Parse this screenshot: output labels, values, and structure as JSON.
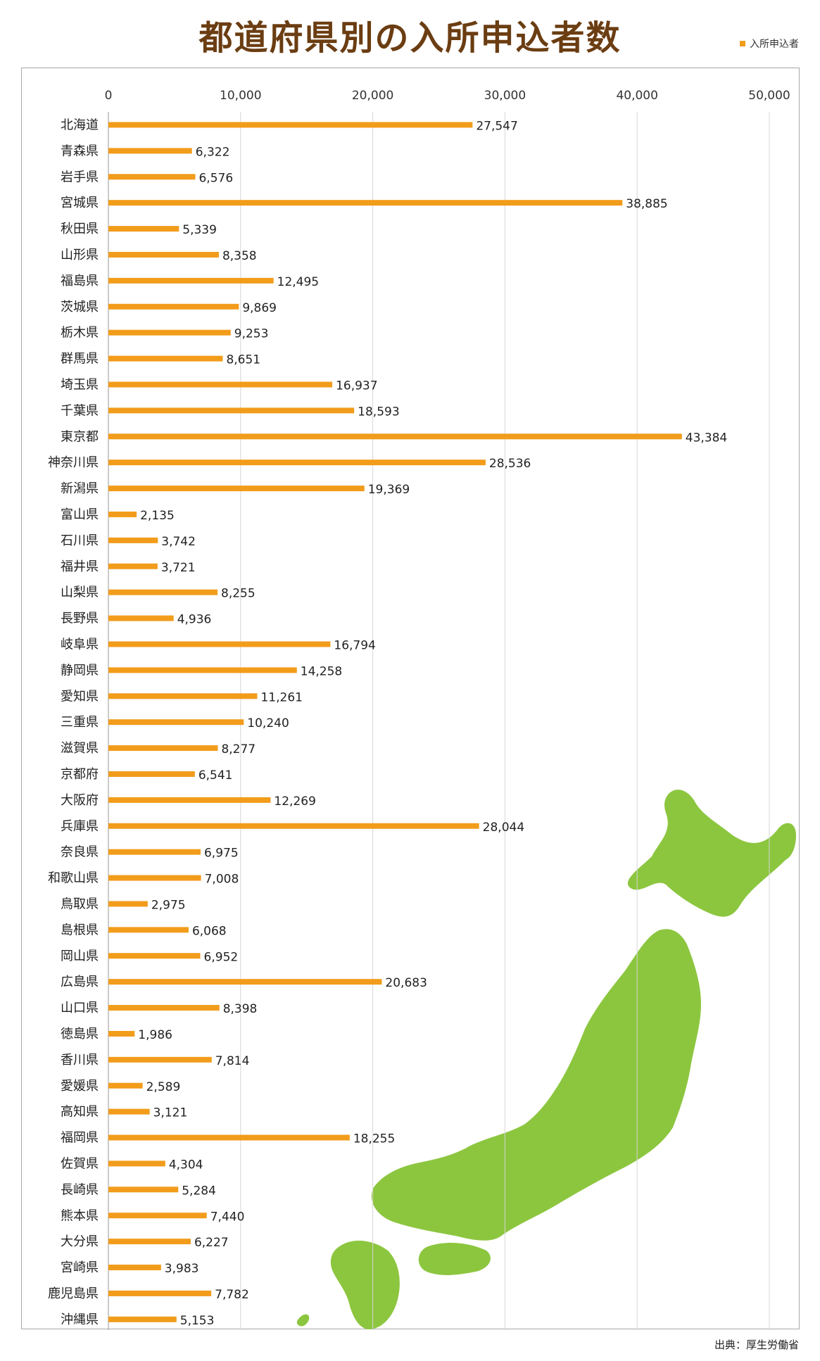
{
  "title": "都道府県別の入所申込者数",
  "legend_label": "入所申込者",
  "source": "出典：厚生労働省",
  "colors": {
    "bar": "#f29c1b",
    "title": "#6b3d12",
    "map": "#8cc63f",
    "grid": "#d6d6d6"
  },
  "chart_data": {
    "type": "bar",
    "orientation": "horizontal",
    "title": "都道府県別の入所申込者数",
    "xlim": [
      0,
      50000
    ],
    "xticks": [
      "0",
      "10,000",
      "20,000",
      "30,000",
      "40,000",
      "50,000"
    ],
    "legend": "top-right",
    "grid": true,
    "categories": [
      "北海道",
      "青森県",
      "岩手県",
      "宮城県",
      "秋田県",
      "山形県",
      "福島県",
      "茨城県",
      "栃木県",
      "群馬県",
      "埼玉県",
      "千葉県",
      "東京都",
      "神奈川県",
      "新潟県",
      "富山県",
      "石川県",
      "福井県",
      "山梨県",
      "長野県",
      "岐阜県",
      "静岡県",
      "愛知県",
      "三重県",
      "滋賀県",
      "京都府",
      "大阪府",
      "兵庫県",
      "奈良県",
      "和歌山県",
      "鳥取県",
      "島根県",
      "岡山県",
      "広島県",
      "山口県",
      "徳島県",
      "香川県",
      "愛媛県",
      "高知県",
      "福岡県",
      "佐賀県",
      "長崎県",
      "熊本県",
      "大分県",
      "宮崎県",
      "鹿児島県",
      "沖縄県"
    ],
    "series": [
      {
        "name": "入所申込者",
        "values": [
          27547,
          6322,
          6576,
          38885,
          5339,
          8358,
          12495,
          9869,
          9253,
          8651,
          16937,
          18593,
          43384,
          28536,
          19369,
          2135,
          3742,
          3721,
          8255,
          4936,
          16794,
          14258,
          11261,
          10240,
          8277,
          6541,
          12269,
          28044,
          6975,
          7008,
          2975,
          6068,
          6952,
          20683,
          8398,
          1986,
          7814,
          2589,
          3121,
          18255,
          4304,
          5284,
          7440,
          6227,
          3983,
          7782,
          5153
        ],
        "labels": [
          "27,547",
          "6,322",
          "6,576",
          "38,885",
          "5,339",
          "8,358",
          "12,495",
          "9,869",
          "9,253",
          "8,651",
          "16,937",
          "18,593",
          "43,384",
          "28,536",
          "19,369",
          "2,135",
          "3,742",
          "3,721",
          "8,255",
          "4,936",
          "16,794",
          "14,258",
          "11,261",
          "10,240",
          "8,277",
          "6,541",
          "12,269",
          "28,044",
          "6,975",
          "7,008",
          "2,975",
          "6,068",
          "6,952",
          "20,683",
          "8,398",
          "1,986",
          "7,814",
          "2,589",
          "3,121",
          "18,255",
          "4,304",
          "5,284",
          "7,440",
          "6,227",
          "3,983",
          "7,782",
          "5,153"
        ]
      }
    ]
  }
}
